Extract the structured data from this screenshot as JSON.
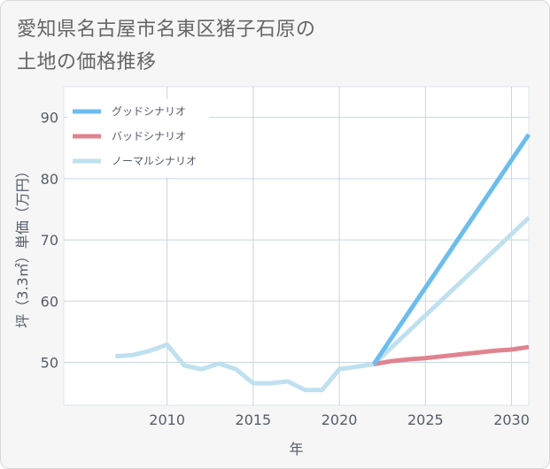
{
  "header": {
    "title_line1": "愛知県名古屋市名東区猪子石原の",
    "title_line2": "土地の価格推移"
  },
  "colors": {
    "background": "#f6f6f6",
    "plot_background": "#ffffff",
    "grid": "#c8d6e0",
    "good": "#6bbdee",
    "bad": "#e0838f",
    "normal": "#bfe0ef",
    "text": "#555d6b"
  },
  "chart_data": {
    "type": "line",
    "title": "愛知県名古屋市名東区猪子石原の土地の価格推移",
    "xlabel": "年",
    "ylabel": "坪（3.3㎡）単価（万円）",
    "xlim": [
      2004.0,
      2031.0
    ],
    "ylim": [
      43.0,
      95.0
    ],
    "xticks": [
      2010,
      2015,
      2020,
      2025,
      2030
    ],
    "yticks": [
      50,
      60,
      70,
      80,
      90
    ],
    "grid": true,
    "legend_position": "top-left",
    "series": [
      {
        "name": "グッドシナリオ",
        "color_key": "good",
        "x": [
          2022,
          2031
        ],
        "y": [
          49.7,
          87.2
        ]
      },
      {
        "name": "バッドシナリオ",
        "color_key": "bad",
        "x": [
          2022,
          2023,
          2024,
          2025,
          2026,
          2027,
          2028,
          2029,
          2030,
          2031
        ],
        "y": [
          49.7,
          50.2,
          50.5,
          50.7,
          51.0,
          51.3,
          51.6,
          51.9,
          52.1,
          52.5
        ]
      },
      {
        "name": "ノーマルシナリオ",
        "color_key": "normal",
        "x": [
          2007,
          2008,
          2009,
          2010,
          2011,
          2012,
          2013,
          2014,
          2015,
          2016,
          2017,
          2018,
          2019,
          2020,
          2021,
          2022,
          2031
        ],
        "y": [
          51.0,
          51.2,
          51.9,
          52.9,
          49.5,
          48.9,
          49.8,
          48.9,
          46.6,
          46.6,
          46.9,
          45.5,
          45.5,
          48.9,
          49.3,
          49.7,
          73.6
        ]
      }
    ]
  }
}
